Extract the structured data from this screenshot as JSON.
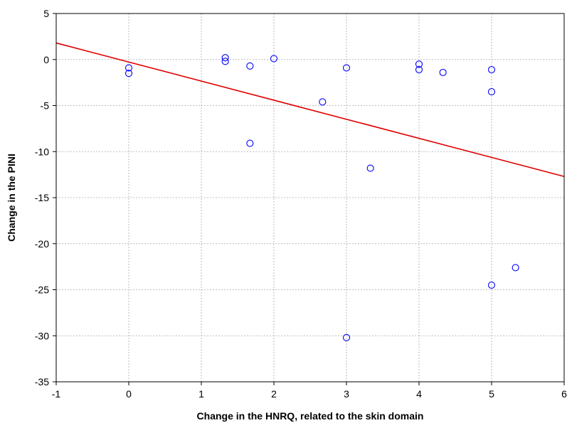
{
  "chart_data": {
    "type": "scatter",
    "title": "",
    "xlabel": "Change in the HNRQ, related to the skin domain",
    "ylabel": "Change in the PINI",
    "xlim": [
      -1,
      6
    ],
    "ylim": [
      -35,
      5
    ],
    "x_ticks": [
      -1,
      0,
      1,
      2,
      3,
      4,
      5,
      6
    ],
    "y_ticks": [
      5,
      0,
      -5,
      -10,
      -15,
      -20,
      -25,
      -30,
      -35
    ],
    "x_tick_labels": [
      "-1",
      "0",
      "1",
      "2",
      "3",
      "4",
      "5",
      "6"
    ],
    "y_tick_labels": [
      "5",
      "0",
      "-5",
      "-10",
      "-15",
      "-20",
      "-25",
      "-30",
      "-35"
    ],
    "grid": true,
    "series": [
      {
        "marker": "open-circle",
        "color": "#0000ff",
        "points": [
          {
            "x": 0.0,
            "y": -0.9
          },
          {
            "x": 0.0,
            "y": -1.5
          },
          {
            "x": 1.33,
            "y": 0.2
          },
          {
            "x": 1.33,
            "y": -0.2
          },
          {
            "x": 1.67,
            "y": -0.7
          },
          {
            "x": 1.67,
            "y": -9.1
          },
          {
            "x": 2.0,
            "y": 0.1
          },
          {
            "x": 2.67,
            "y": -4.6
          },
          {
            "x": 3.0,
            "y": -0.9
          },
          {
            "x": 3.0,
            "y": -30.2
          },
          {
            "x": 3.33,
            "y": -11.8
          },
          {
            "x": 4.0,
            "y": -0.5
          },
          {
            "x": 4.0,
            "y": -1.1
          },
          {
            "x": 4.33,
            "y": -1.4
          },
          {
            "x": 5.0,
            "y": -1.1
          },
          {
            "x": 5.0,
            "y": -3.5
          },
          {
            "x": 5.0,
            "y": -24.5
          },
          {
            "x": 5.33,
            "y": -22.6
          }
        ]
      }
    ],
    "fit_line": {
      "color": "#e00000",
      "x": [
        -1,
        6
      ],
      "y": [
        1.8,
        -12.7
      ]
    }
  }
}
